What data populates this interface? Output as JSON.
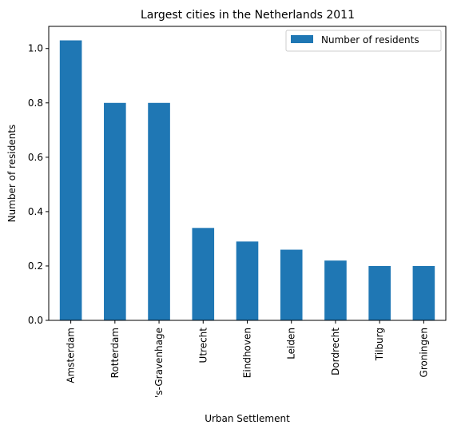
{
  "chart_data": {
    "type": "bar",
    "title": "Largest cities in the Netherlands 2011",
    "xlabel": "Urban Settlement",
    "ylabel": "Number of residents",
    "categories": [
      "Amsterdam",
      "Rotterdam",
      "'s-Gravenhage",
      "Utrecht",
      "Eindhoven",
      "Leiden",
      "Dordrecht",
      "Tilburg",
      "Groningen"
    ],
    "series": [
      {
        "name": "Number of residents",
        "values": [
          1.03,
          0.8,
          0.8,
          0.34,
          0.29,
          0.26,
          0.22,
          0.2,
          0.2
        ],
        "color": "#1f77b4"
      }
    ],
    "ylim": [
      0,
      1.0815
    ],
    "yticks": [
      "0.0",
      "0.2",
      "0.4",
      "0.6",
      "0.8",
      "1.0"
    ],
    "legend": "top-right",
    "grid": false
  }
}
